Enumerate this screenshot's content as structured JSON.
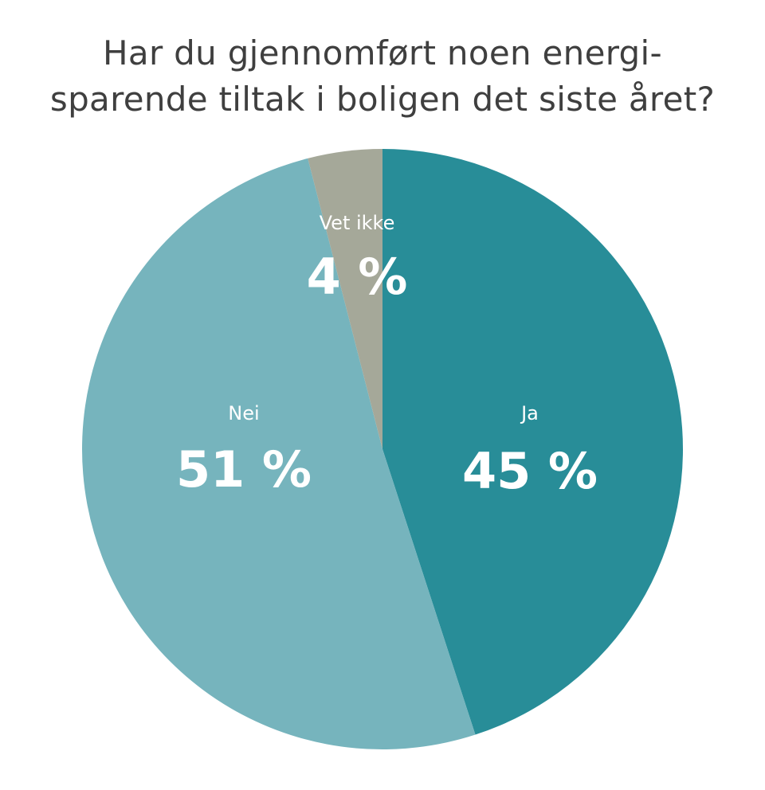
{
  "chart_data": {
    "type": "pie",
    "title_lines": [
      "Har du gjennomført noen energi-",
      "sparende tiltak i boligen det siste året?"
    ],
    "slices": [
      {
        "label": "Ja",
        "value": 45,
        "value_label": "45 %",
        "color": "#288d98"
      },
      {
        "label": "Nei",
        "value": 51,
        "value_label": "51 %",
        "color": "#76b4bd"
      },
      {
        "label": "Vet ikke",
        "value": 4,
        "value_label": "4 %",
        "color": "#a5a899"
      }
    ],
    "start": "12 o'clock",
    "direction": "clockwise",
    "legend": "none"
  }
}
